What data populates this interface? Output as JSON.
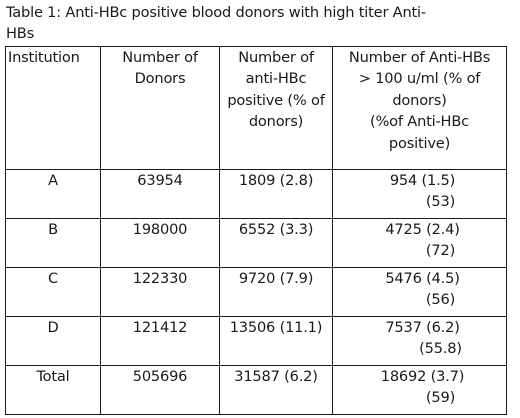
{
  "caption": {
    "line1": "Table 1: Anti-HBc positive blood donors with high titer Anti-",
    "line2": "HBs"
  },
  "table": {
    "headers": {
      "institution": "Institution",
      "donors_1": "Number of",
      "donors_2": "Donors",
      "anti_hbc_1": "Number of",
      "anti_hbc_2": "anti-HBc",
      "anti_hbc_3": "positive (% of",
      "anti_hbc_4": "donors)",
      "anti_hbs_1": "Number of Anti-HBs",
      "anti_hbs_2": "> 100 u/ml (% of",
      "anti_hbs_3": "donors)",
      "anti_hbs_4": "(%of Anti-HBc",
      "anti_hbs_5": "positive)"
    },
    "rows": [
      {
        "institution": "A",
        "donors": "63954",
        "anti_hbc": "1809 (2.8)",
        "anti_hbs_1": "954 (1.5)",
        "anti_hbs_2": "(53)"
      },
      {
        "institution": "B",
        "donors": "198000",
        "anti_hbc": "6552 (3.3)",
        "anti_hbs_1": "4725 (2.4)",
        "anti_hbs_2": "(72)"
      },
      {
        "institution": "C",
        "donors": "122330",
        "anti_hbc": "9720 (7.9)",
        "anti_hbs_1": "5476 (4.5)",
        "anti_hbs_2": "(56)"
      },
      {
        "institution": "D",
        "donors": "121412",
        "anti_hbc": "13506 (11.1)",
        "anti_hbs_1": "7537 (6.2)",
        "anti_hbs_2": "(55.8)"
      },
      {
        "institution": "Total",
        "donors": "505696",
        "anti_hbc": "31587 (6.2)",
        "anti_hbs_1": "18692 (3.7)",
        "anti_hbs_2": "(59)"
      }
    ]
  }
}
